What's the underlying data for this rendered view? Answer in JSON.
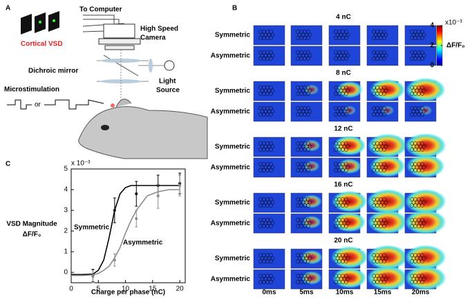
{
  "panel_a": {
    "label": "A",
    "to_computer": "To Computer",
    "camera": [
      "High Speed",
      "Camera"
    ],
    "vsd": "Cortical VSD",
    "mirror": "Dichroic mirror",
    "light": [
      "Light",
      "Source"
    ],
    "stim": "Microstimulation",
    "or": "or"
  },
  "panel_b": {
    "label": "B",
    "charges": [
      "4 nC",
      "8 nC",
      "12 nC",
      "16 nC",
      "20 nC"
    ],
    "conditions": [
      "Symmetric",
      "Asymmetric"
    ],
    "times": [
      "0ms",
      "5ms",
      "10ms",
      "15ms",
      "20ms"
    ],
    "colorbar": {
      "lim": [
        0,
        4
      ],
      "ticks": [
        0,
        2,
        4
      ],
      "multiplier": "x10⁻³",
      "label": "ΔF/F₀"
    }
  },
  "chart_data": {
    "type": "line",
    "label": "C",
    "x": [
      4,
      8,
      12,
      16,
      20
    ],
    "series": [
      {
        "name": "Symmetric",
        "color": "#000000",
        "values": [
          -0.15,
          3.0,
          3.8,
          4.2,
          4.3
        ],
        "errors": [
          0.3,
          0.6,
          0.6,
          0.5,
          0.5
        ],
        "fit": [
          -0.1,
          -0.1,
          -0.08,
          0.1,
          0.6,
          1.7,
          3.0,
          3.8,
          4.1,
          4.2,
          4.2,
          4.2,
          4.2,
          4.2,
          4.2
        ]
      },
      {
        "name": "Asymmetric",
        "color": "#8c8c8c",
        "values": [
          -0.2,
          0.6,
          2.6,
          3.7,
          4.2
        ],
        "errors": [
          0.3,
          0.3,
          0.4,
          0.6,
          0.5
        ],
        "fit": [
          -0.15,
          -0.15,
          -0.12,
          -0.05,
          0.1,
          0.3,
          0.7,
          1.2,
          1.9,
          2.5,
          3.0,
          3.7,
          3.9,
          4.0,
          4.0
        ]
      }
    ],
    "fit_x": [
      0,
      2,
      4,
      5,
      6,
      7,
      8,
      9,
      10,
      11,
      12,
      14,
      16,
      18,
      20
    ],
    "xlim": [
      0,
      21
    ],
    "ylim": [
      -0.5,
      5
    ],
    "xticks": [
      0,
      5,
      10,
      15,
      20
    ],
    "yticks": [
      0,
      1,
      2,
      3,
      4,
      5
    ],
    "y_multiplier": "x 10⁻³",
    "xlabel": "Charge per phase (nC)",
    "ylabel": [
      "VSD Magnitude",
      "ΔF/F₀"
    ]
  }
}
